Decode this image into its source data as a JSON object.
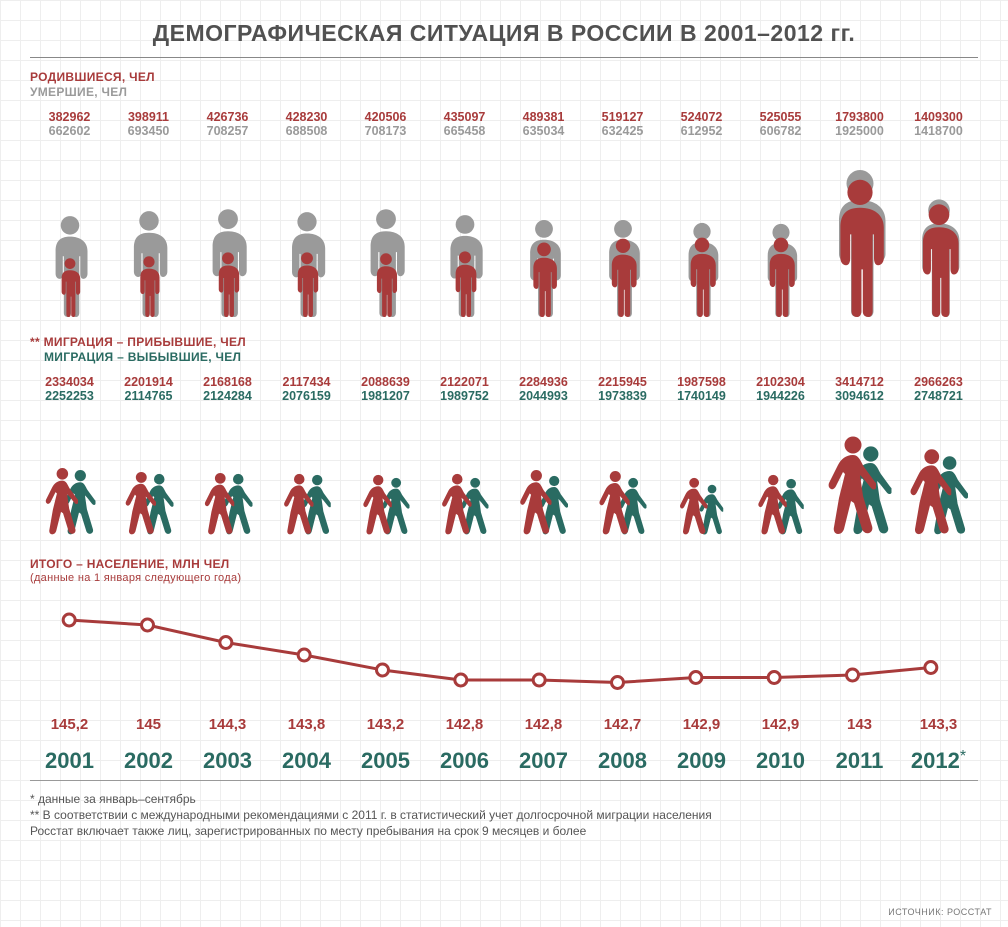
{
  "title": "ДЕМОГРАФИЧЕСКАЯ СИТУАЦИЯ В РОССИИ В 2001–2012 гг.",
  "colors": {
    "red": "#a83b3b",
    "gray": "#9a9a9a",
    "teal": "#2a6b62",
    "grid": "#eeeeee",
    "text": "#515151"
  },
  "legend_bd": {
    "born": "РОДИВШИЕСЯ, ЧЕЛ",
    "dead": "УМЕРШИЕ, ЧЕЛ"
  },
  "legend_mig": {
    "prefix": "**",
    "in": "МИГРАЦИЯ – ПРИБЫВШИЕ, ЧЕЛ",
    "out": "МИГРАЦИЯ – ВЫБЫВШИЕ, ЧЕЛ"
  },
  "legend_pop": {
    "line1": "ИТОГО – НАСЕЛЕНИЕ, МЛН ЧЕЛ",
    "line2": "(данные на 1 января следующего года)"
  },
  "years": [
    "2001",
    "2002",
    "2003",
    "2004",
    "2005",
    "2006",
    "2007",
    "2008",
    "2009",
    "2010",
    "2011",
    "2012"
  ],
  "year_star_index": 11,
  "births": [
    "382962",
    "398911",
    "426736",
    "428230",
    "420506",
    "435097",
    "489381",
    "519127",
    "524072",
    "525055",
    "1793800",
    "1409300"
  ],
  "deaths": [
    "662602",
    "693450",
    "708257",
    "688508",
    "708173",
    "665458",
    "635034",
    "632425",
    "612952",
    "606782",
    "1925000",
    "1418700"
  ],
  "bd_heights": {
    "comment": "icon heights in px, approximating relative magnitudes",
    "born": [
      60,
      62,
      66,
      66,
      65,
      67,
      76,
      80,
      81,
      81,
      140,
      115
    ],
    "dead": [
      103,
      108,
      110,
      107,
      110,
      104,
      99,
      99,
      96,
      95,
      150,
      120
    ]
  },
  "mig_in": [
    "2334034",
    "2201914",
    "2168168",
    "2117434",
    "2088639",
    "2122071",
    "2284936",
    "2215945",
    "1987598",
    "2102304",
    "3414712",
    "2966263"
  ],
  "mig_out": [
    "2252253",
    "2114765",
    "2124284",
    "2076159",
    "1981207",
    "1989752",
    "2044993",
    "1973839",
    "1740149",
    "1944226",
    "3094612",
    "2748721"
  ],
  "mig_heights": {
    "in": [
      68,
      64,
      63,
      62,
      61,
      62,
      66,
      65,
      58,
      61,
      100,
      87
    ],
    "out": [
      66,
      62,
      62,
      61,
      58,
      58,
      60,
      58,
      51,
      57,
      90,
      80
    ]
  },
  "population": {
    "values": [
      "145,2",
      "145",
      "144,3",
      "143,8",
      "143,2",
      "142,8",
      "142,8",
      "142,7",
      "142,9",
      "142,9",
      "143",
      "143,3"
    ],
    "numeric": [
      145.2,
      145.0,
      144.3,
      143.8,
      143.2,
      142.8,
      142.8,
      142.7,
      142.9,
      142.9,
      143.0,
      143.3
    ],
    "ymin": 142.0,
    "ymax": 146.0,
    "line_color": "#a83b3b",
    "line_width": 3,
    "marker_fill": "#ffffff",
    "marker_stroke": "#a83b3b",
    "marker_r": 6
  },
  "footnotes": {
    "f1": "* данные за январь–сентябрь",
    "f2": "** В соответствии с международными рекомендациями с 2011 г. в статистический учет долгосрочной миграции населения",
    "f3": "Росстат включает также лиц, зарегистрированных по месту пребывания на срок 9 месяцев и более"
  },
  "source": "ИСТОЧНИК: РОССТАТ"
}
